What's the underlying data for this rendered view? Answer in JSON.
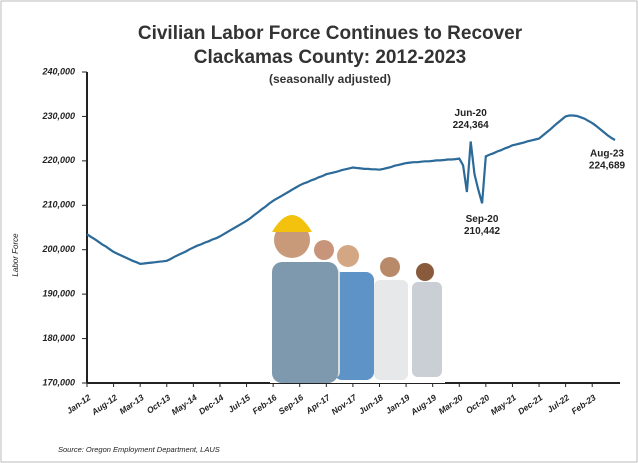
{
  "chart_data": {
    "type": "line",
    "title": "Civilian Labor Force Continues to Recover",
    "subtitle": "Clackamas County: 2012-2023",
    "note": "(seasonally adjusted)",
    "y_label": "Labor Force",
    "source": "Source: Oregon Employment Department, LAUS",
    "categories": [
      "Jan-12",
      null,
      null,
      null,
      null,
      null,
      null,
      "Aug-12",
      null,
      null,
      null,
      null,
      null,
      null,
      "Mar-13",
      null,
      null,
      null,
      null,
      null,
      null,
      "Oct-13",
      null,
      null,
      null,
      null,
      null,
      null,
      "May-14",
      null,
      null,
      null,
      null,
      null,
      null,
      "Dec-14",
      null,
      null,
      null,
      null,
      null,
      null,
      "Jul-15",
      null,
      null,
      null,
      null,
      null,
      null,
      "Feb-16",
      null,
      null,
      null,
      null,
      null,
      null,
      "Sep-16",
      null,
      null,
      null,
      null,
      null,
      null,
      "Apr-17",
      null,
      null,
      null,
      null,
      null,
      null,
      "Nov-17",
      null,
      null,
      null,
      null,
      null,
      null,
      "Jun-18",
      null,
      null,
      null,
      null,
      null,
      null,
      "Jan-19",
      null,
      null,
      null,
      null,
      null,
      null,
      "Aug-19",
      null,
      null,
      null,
      null,
      null,
      null,
      "Mar-20",
      null,
      null,
      null,
      null,
      null,
      null,
      "Oct-20",
      null,
      null,
      null,
      null,
      null,
      null,
      "May-21",
      null,
      null,
      null,
      null,
      null,
      null,
      "Dec-21",
      null,
      null,
      null,
      null,
      null,
      null,
      "Jul-22",
      null,
      null,
      null,
      null,
      null,
      null,
      "Feb-23",
      null,
      null,
      null,
      null,
      null,
      null
    ],
    "series": [
      {
        "name": "Labor Force",
        "color": "#2b6a99",
        "values": [
          203500,
          202900,
          202400,
          201800,
          201200,
          200700,
          200100,
          199500,
          199100,
          198700,
          198300,
          197900,
          197500,
          197200,
          196800,
          196900,
          197000,
          197100,
          197200,
          197300,
          197400,
          197500,
          197900,
          198400,
          198800,
          199200,
          199600,
          200100,
          200500,
          200900,
          201200,
          201600,
          201900,
          202300,
          202600,
          203000,
          203500,
          204000,
          204500,
          205000,
          205500,
          206000,
          206500,
          207100,
          207800,
          208400,
          209100,
          209700,
          210400,
          211000,
          211500,
          212000,
          212500,
          213000,
          213500,
          214000,
          214500,
          214900,
          215200,
          215600,
          215900,
          216300,
          216600,
          217000,
          217200,
          217400,
          217600,
          217900,
          218100,
          218300,
          218500,
          218400,
          218300,
          218200,
          218200,
          218100,
          218100,
          218000,
          218200,
          218400,
          218600,
          218900,
          219100,
          219300,
          219500,
          219600,
          219700,
          219700,
          219800,
          219900,
          219900,
          220000,
          220100,
          220100,
          220200,
          220300,
          220300,
          220400,
          220500,
          219000,
          213000,
          224364,
          217000,
          213500,
          210442,
          221000,
          221400,
          221700,
          222100,
          222400,
          222800,
          223100,
          223500,
          223700,
          223900,
          224100,
          224400,
          224600,
          224800,
          225000,
          225700,
          226400,
          227100,
          227900,
          228600,
          229300,
          230000,
          230200,
          230200,
          230100,
          229800,
          229500,
          229000,
          228500,
          227900,
          227200,
          226500,
          225800,
          225200,
          224689
        ],
        "value_labels": [
          null,
          null,
          null,
          null,
          null,
          null,
          null,
          null,
          null,
          null,
          null,
          null,
          null,
          null,
          null,
          null,
          null,
          null,
          null,
          null,
          null,
          null,
          null,
          null,
          null,
          null,
          null,
          null,
          null,
          null,
          null,
          null,
          null,
          null,
          null,
          null,
          null,
          null,
          null,
          null,
          null,
          null,
          null,
          null,
          null,
          null,
          null,
          null,
          null,
          null,
          null,
          null,
          null,
          null,
          null,
          null,
          null,
          null,
          null,
          null,
          null,
          null,
          null,
          null,
          null,
          null,
          null,
          null,
          null,
          null,
          null,
          null,
          null,
          null,
          null,
          null,
          null,
          null,
          null,
          null,
          null,
          null,
          null,
          null,
          null,
          null,
          null,
          null,
          null,
          null,
          null,
          null,
          null,
          null,
          null,
          null,
          null,
          null,
          null,
          null,
          null,
          "224,364",
          null,
          null,
          "210,442",
          null,
          null,
          null,
          null,
          null,
          null,
          null,
          null,
          null,
          null,
          null,
          null,
          null,
          null,
          null,
          null,
          null,
          null,
          null,
          null,
          null,
          null,
          null,
          null,
          null,
          null,
          null,
          null,
          null,
          null,
          null,
          null,
          null,
          "224,689"
        ]
      }
    ],
    "annotations": [
      "Jun-20",
      "Sep-20",
      "Aug-23"
    ],
    "ylim": [
      170000,
      240000
    ],
    "yticks": [
      {
        "value": 170000,
        "label": "170,000"
      },
      {
        "value": 180000,
        "label": "180,000"
      },
      {
        "value": 190000,
        "label": "190,000"
      },
      {
        "value": 200000,
        "label": "200,000"
      },
      {
        "value": 210000,
        "label": "210,000"
      },
      {
        "value": 220000,
        "label": "220,000"
      },
      {
        "value": 230000,
        "label": "230,000"
      },
      {
        "value": 240000,
        "label": "240,000"
      }
    ],
    "grid": false
  }
}
